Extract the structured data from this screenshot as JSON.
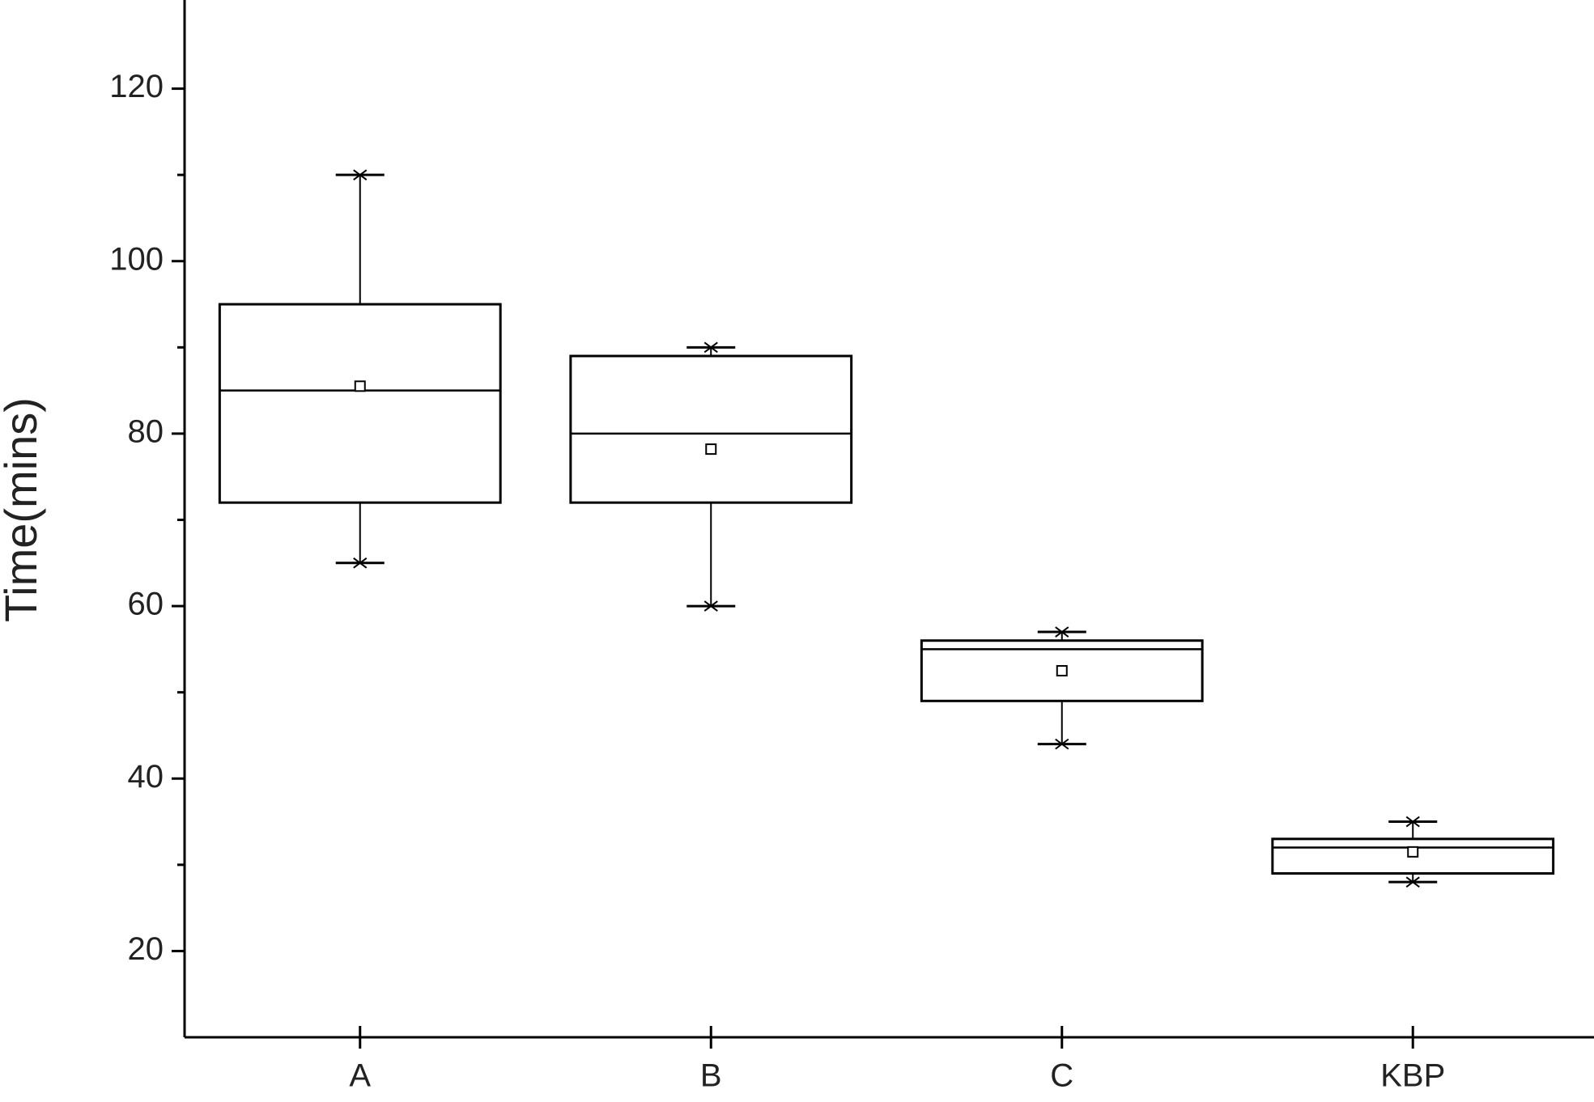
{
  "chart_data": {
    "type": "box",
    "y_label": "Time(mins)",
    "categories": [
      "A",
      "B",
      "C",
      "KBP"
    ],
    "min": [
      65,
      60,
      44,
      28
    ],
    "q1": [
      72,
      72,
      49,
      29
    ],
    "median": [
      85,
      80,
      55,
      32
    ],
    "q3": [
      95,
      89,
      56,
      33
    ],
    "max": [
      110,
      90,
      57,
      35
    ],
    "mean": [
      85.5,
      78.2,
      52.5,
      31.5
    ],
    "color": "#000000",
    "ylim": [
      10,
      130
    ],
    "yticks": [
      20,
      40,
      60,
      80,
      100,
      120
    ],
    "yminorticks": [
      30,
      50,
      70,
      90,
      110
    ],
    "grid": false
  }
}
